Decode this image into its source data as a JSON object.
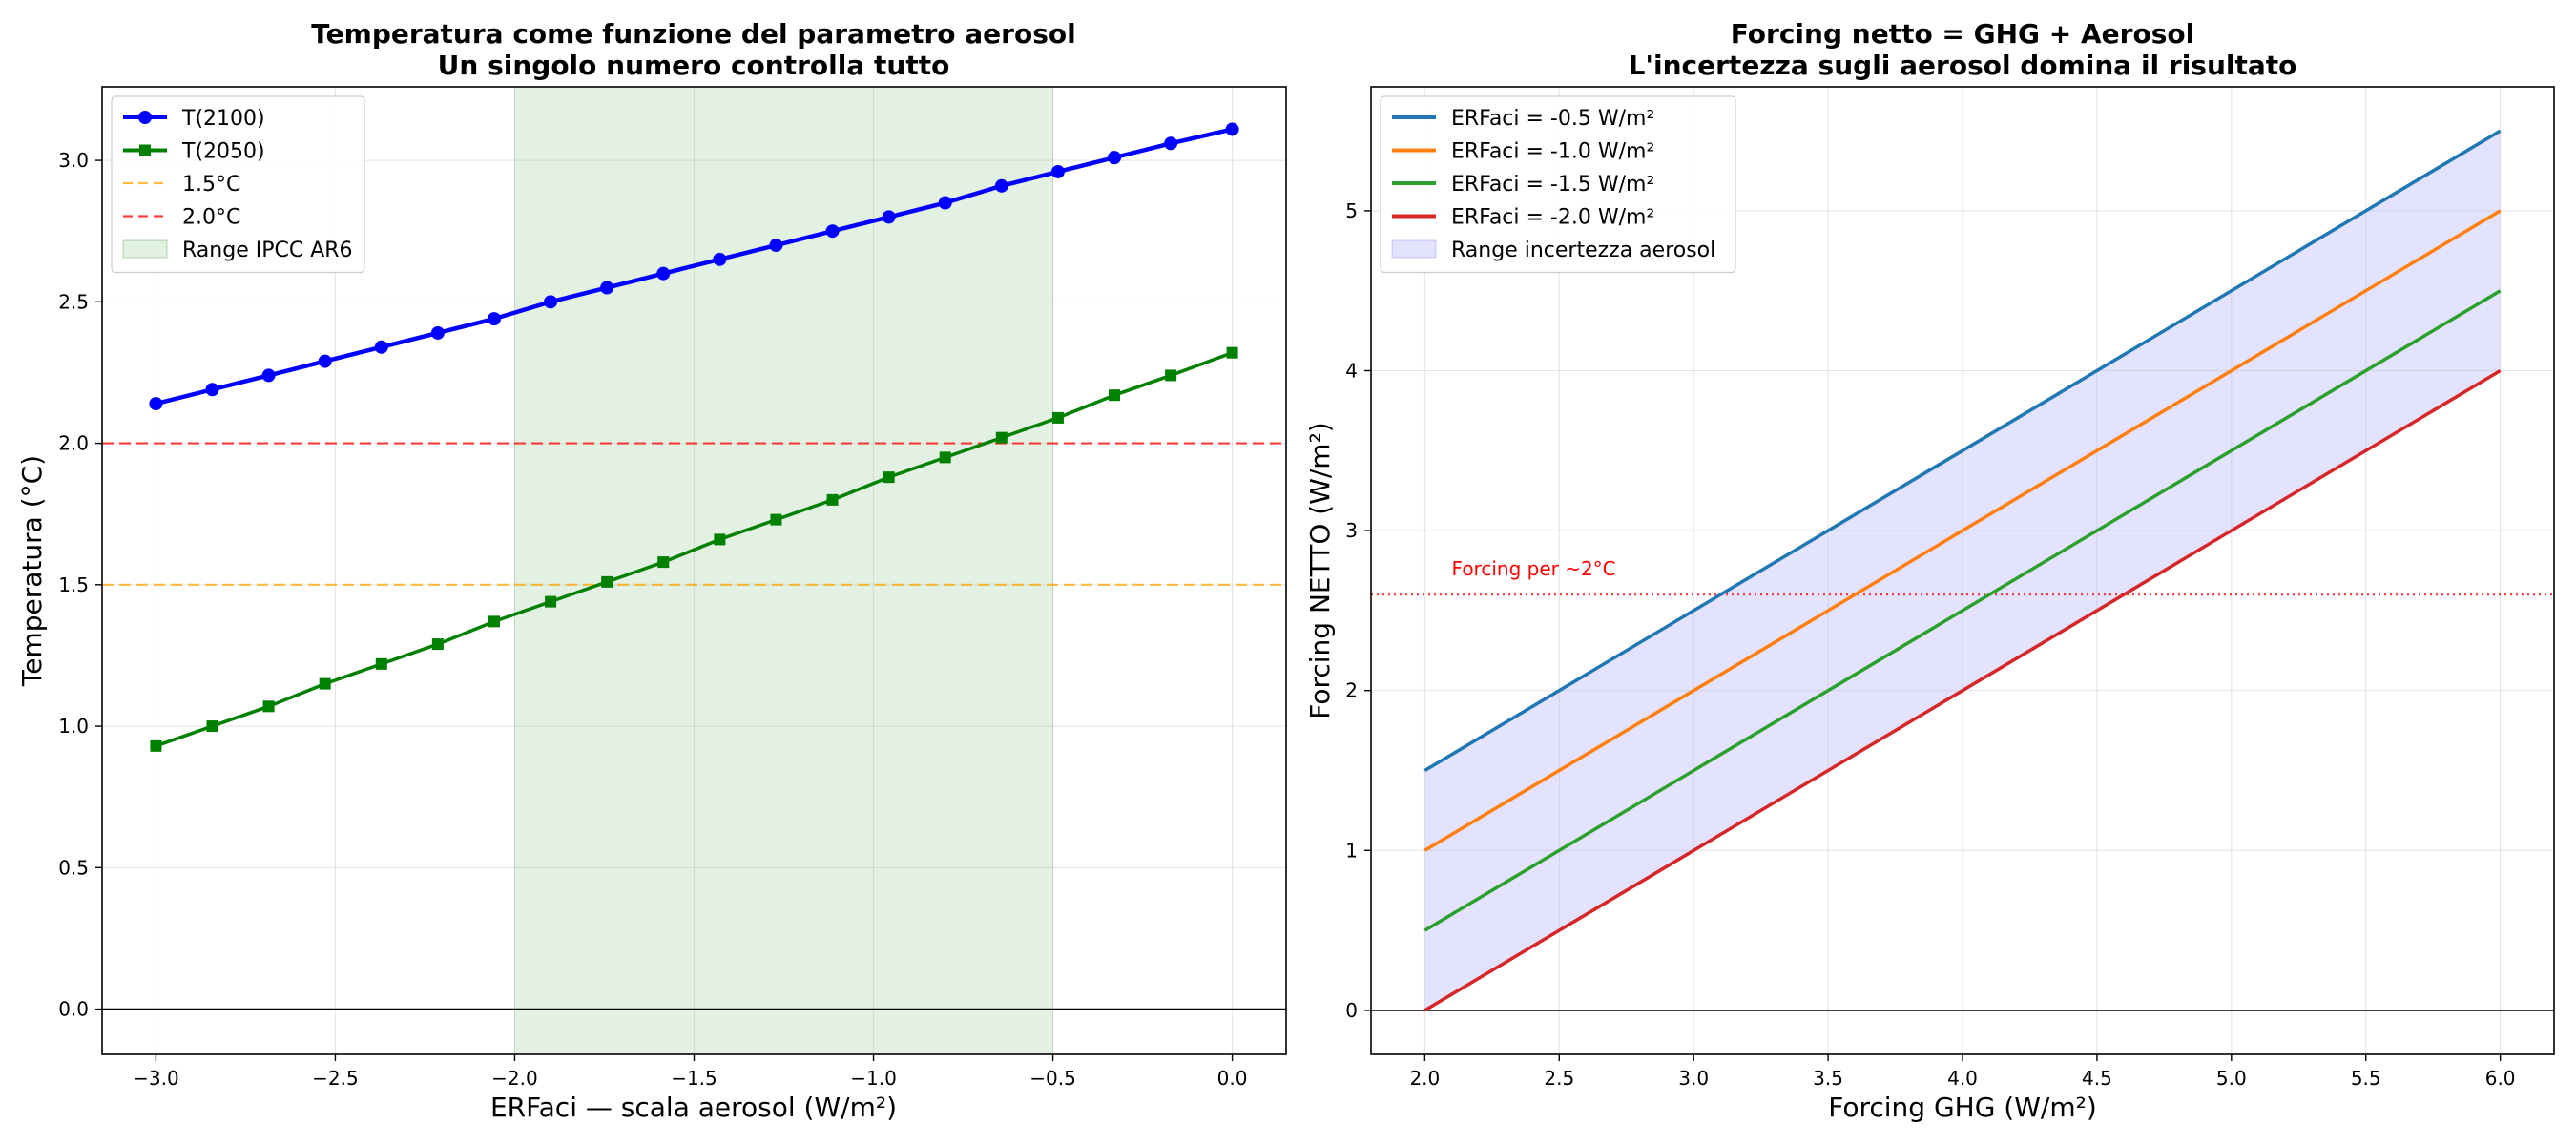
{
  "chart_data": [
    {
      "type": "line",
      "title_line1": "Temperatura come funzione del parametro aerosol",
      "title_line2": "Un singolo numero controlla tutto",
      "xlabel": "ERFaci — scala aerosol (W/m²)",
      "ylabel": "Temperatura (°C)",
      "xlim": [
        -3.15,
        0.15
      ],
      "ylim": [
        -0.16,
        3.26
      ],
      "xticks": [
        -3.0,
        -2.5,
        -2.0,
        -1.5,
        -1.0,
        -0.5,
        0.0
      ],
      "xtick_labels": [
        "−3.0",
        "−2.5",
        "−2.0",
        "−1.5",
        "−1.0",
        "−0.5",
        "0.0"
      ],
      "yticks": [
        0.0,
        0.5,
        1.0,
        1.5,
        2.0,
        2.5,
        3.0
      ],
      "ytick_labels": [
        "0.0",
        "0.5",
        "1.0",
        "1.5",
        "2.0",
        "2.5",
        "3.0"
      ],
      "x": [
        -3.0,
        -2.842857,
        -2.685714,
        -2.528571,
        -2.371429,
        -2.214286,
        -2.057143,
        -1.9,
        -1.742857,
        -1.585714,
        -1.428571,
        -1.271429,
        -1.114286,
        -0.957143,
        -0.8,
        -0.642857,
        -0.485714,
        -0.328571,
        -0.171429,
        0.0
      ],
      "series": [
        {
          "name": "T(2100)",
          "color": "#0000ff",
          "marker": "circle",
          "values": [
            2.14,
            2.19,
            2.24,
            2.29,
            2.34,
            2.39,
            2.44,
            2.5,
            2.55,
            2.6,
            2.65,
            2.7,
            2.75,
            2.8,
            2.85,
            2.91,
            2.96,
            3.01,
            3.06,
            3.11
          ]
        },
        {
          "name": "T(2050)",
          "color": "#008000",
          "marker": "square",
          "values": [
            0.93,
            1.0,
            1.07,
            1.15,
            1.22,
            1.29,
            1.37,
            1.44,
            1.51,
            1.58,
            1.66,
            1.73,
            1.8,
            1.88,
            1.95,
            2.02,
            2.09,
            2.17,
            2.24,
            2.32
          ]
        }
      ],
      "hlines": [
        {
          "name": "1.5°C",
          "y": 1.5,
          "color": "#ffa500"
        },
        {
          "name": "2.0°C",
          "y": 2.0,
          "color": "#ff0000"
        }
      ],
      "span": {
        "name": "Range IPCC AR6",
        "x0": -2.0,
        "x1": -0.5,
        "color": "#008000"
      },
      "legend_position": "top-left"
    },
    {
      "type": "line",
      "title_line1": "Forcing netto = GHG + Aerosol",
      "title_line2": "L'incertezza sugli aerosol domina il risultato",
      "xlabel": "Forcing GHG (W/m²)",
      "ylabel": "Forcing NETTO (W/m²)",
      "xlim": [
        1.8,
        6.2
      ],
      "ylim": [
        -0.275,
        5.775
      ],
      "xticks": [
        2.0,
        2.5,
        3.0,
        3.5,
        4.0,
        4.5,
        5.0,
        5.5,
        6.0
      ],
      "xtick_labels": [
        "2.0",
        "2.5",
        "3.0",
        "3.5",
        "4.0",
        "4.5",
        "5.0",
        "5.5",
        "6.0"
      ],
      "yticks": [
        0,
        1,
        2,
        3,
        4,
        5
      ],
      "ytick_labels": [
        "0",
        "1",
        "2",
        "3",
        "4",
        "5"
      ],
      "x": [
        2.0,
        6.0
      ],
      "series": [
        {
          "name": "ERFaci = -0.5 W/m²",
          "color": "#1f77b4",
          "values": [
            1.5,
            5.5
          ]
        },
        {
          "name": "ERFaci = -1.0 W/m²",
          "color": "#ff7f0e",
          "values": [
            1.0,
            5.0
          ]
        },
        {
          "name": "ERFaci = -1.5 W/m²",
          "color": "#2ca02c",
          "values": [
            0.5,
            4.5
          ]
        },
        {
          "name": "ERFaci = -2.0 W/m²",
          "color": "#d62728",
          "values": [
            0.0,
            4.0
          ]
        }
      ],
      "band": {
        "name": "Range incertezza aerosol",
        "upper": [
          1.5,
          5.5
        ],
        "lower": [
          0.0,
          4.0
        ],
        "color": "#6666ff"
      },
      "hlines": [
        {
          "name": "Forcing per ~2°C",
          "y": 2.6,
          "color": "#ff0000",
          "style": "dotted"
        }
      ],
      "annotation": {
        "text": "Forcing per ~2°C",
        "x": 2.1,
        "y": 2.72,
        "color": "#ff0000"
      },
      "legend_position": "top-left"
    }
  ]
}
